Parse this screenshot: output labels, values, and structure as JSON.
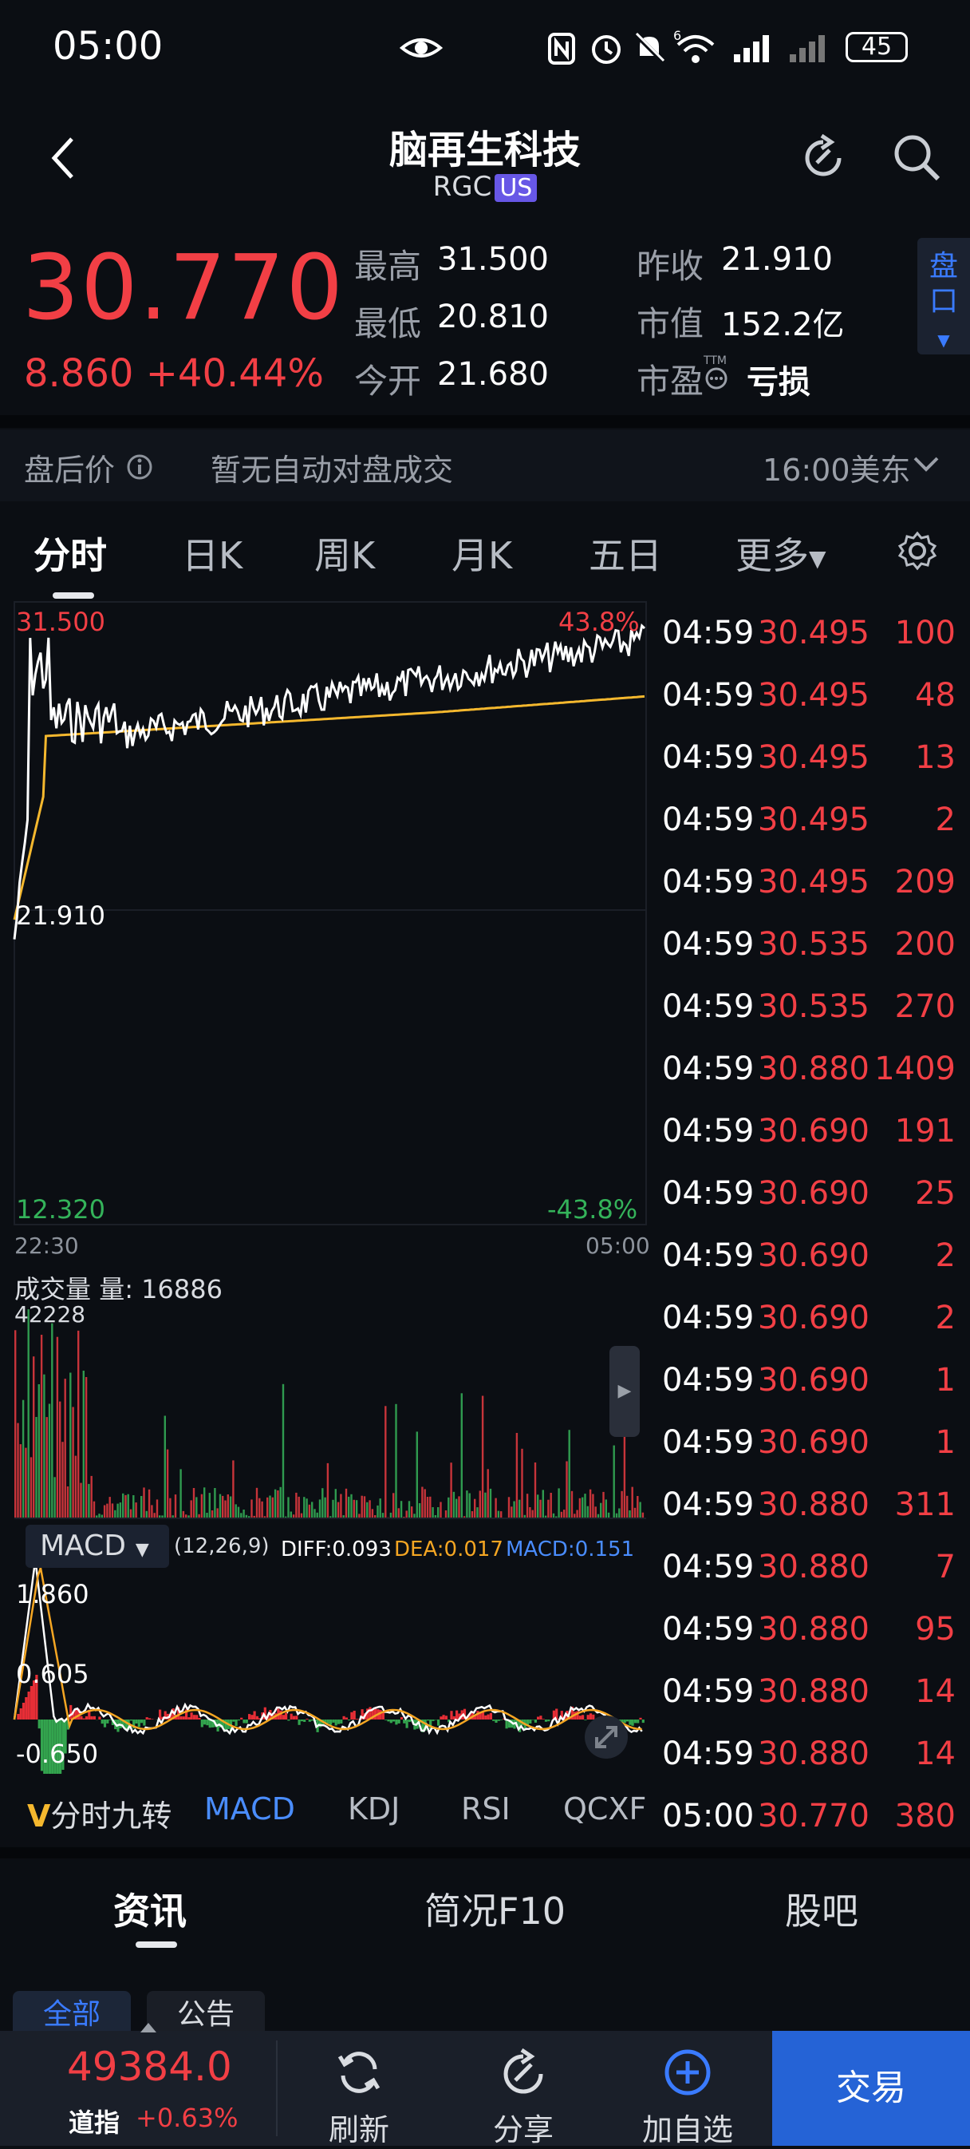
{
  "status_bar": {
    "time": "05:00",
    "battery": "45",
    "network": "6"
  },
  "header": {
    "title": "脑再生科技",
    "ticker": "RGC",
    "market_badge": "US"
  },
  "quote": {
    "price": "30.770",
    "change": "8.860",
    "change_pct": "+40.44%",
    "high_label": "最高",
    "high": "31.500",
    "low_label": "最低",
    "low": "20.810",
    "open_label": "今开",
    "open": "21.680",
    "prev_close_label": "昨收",
    "prev_close": "21.910",
    "mcap_label": "市值",
    "mcap": "152.2亿",
    "pe_label": "市盈",
    "pe_super": "TTM",
    "pe": "亏损",
    "pankou_label": "盘口"
  },
  "after_hours": {
    "label": "盘后价",
    "message": "暂无自动对盘成交",
    "time_zone": "16:00美东"
  },
  "chart_tabs": [
    "分时",
    "日K",
    "周K",
    "月K",
    "五日",
    "更多"
  ],
  "chart": {
    "y_high": "31.500",
    "y_mid": "21.910",
    "y_low": "12.320",
    "pct_high": "43.8%",
    "pct_low": "-43.8%",
    "t_start": "22:30",
    "t_end": "05:00",
    "volume_label": "成交量",
    "volume_current": "量: 16886",
    "volume_max": "42228",
    "macd_label": "MACD",
    "macd_params": "(12,26,9)",
    "diff": "DIFF:0.093",
    "dea": "DEA:0.017",
    "macd_val": "MACD:0.151",
    "macd_high": "1.860",
    "macd_mid": "0.605",
    "macd_low": "-0.650"
  },
  "ticks": [
    {
      "time": "04:59",
      "price": "30.495",
      "vol": "100"
    },
    {
      "time": "04:59",
      "price": "30.495",
      "vol": "48"
    },
    {
      "time": "04:59",
      "price": "30.495",
      "vol": "13"
    },
    {
      "time": "04:59",
      "price": "30.495",
      "vol": "2"
    },
    {
      "time": "04:59",
      "price": "30.495",
      "vol": "209"
    },
    {
      "time": "04:59",
      "price": "30.535",
      "vol": "200"
    },
    {
      "time": "04:59",
      "price": "30.535",
      "vol": "270"
    },
    {
      "time": "04:59",
      "price": "30.880",
      "vol": "1409"
    },
    {
      "time": "04:59",
      "price": "30.690",
      "vol": "191"
    },
    {
      "time": "04:59",
      "price": "30.690",
      "vol": "25"
    },
    {
      "time": "04:59",
      "price": "30.690",
      "vol": "2"
    },
    {
      "time": "04:59",
      "price": "30.690",
      "vol": "2"
    },
    {
      "time": "04:59",
      "price": "30.690",
      "vol": "1"
    },
    {
      "time": "04:59",
      "price": "30.690",
      "vol": "1"
    },
    {
      "time": "04:59",
      "price": "30.880",
      "vol": "311"
    },
    {
      "time": "04:59",
      "price": "30.880",
      "vol": "7"
    },
    {
      "time": "04:59",
      "price": "30.880",
      "vol": "95"
    },
    {
      "time": "04:59",
      "price": "30.880",
      "vol": "14"
    },
    {
      "time": "04:59",
      "price": "30.880",
      "vol": "14"
    },
    {
      "time": "05:00",
      "price": "30.770",
      "vol": "380"
    }
  ],
  "indicator_tabs": {
    "nine": "分时九转",
    "v": "V",
    "items": [
      "MACD",
      "KDJ",
      "RSI",
      "QCXF"
    ]
  },
  "news_tabs": [
    "资讯",
    "简况F10",
    "股吧"
  ],
  "sub_tabs": [
    "全部",
    "公告"
  ],
  "bottom": {
    "index_value": "49384.0",
    "index_name": "道指",
    "index_change": "+0.63%",
    "refresh": "刷新",
    "share": "分享",
    "add_watch": "加自选",
    "trade": "交易"
  },
  "colors": {
    "up": "#f23f45",
    "down": "#34b35a",
    "avg_line": "#f5b82e",
    "accent": "#2563d6"
  }
}
